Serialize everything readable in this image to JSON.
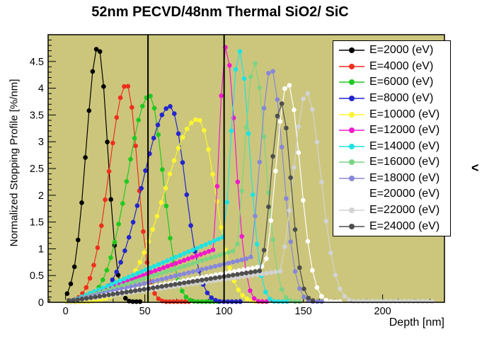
{
  "title": "52nm PECVD/48nm Thermal SiO2/ SiC",
  "chevron": "<",
  "chart_data": {
    "type": "line",
    "title": "52nm PECVD/48nm Thermal SiO2/ SiC",
    "xlabel": "Depth [nm]",
    "ylabel": "Normalized Stopping Profile [%/nm]",
    "xlim": [
      -11,
      239
    ],
    "ylim": [
      0,
      5
    ],
    "x_ticks": [
      0,
      50,
      100,
      150,
      200
    ],
    "x_minor_step": 10,
    "y_ticks": [
      0,
      0.5,
      1,
      1.5,
      2,
      2.5,
      3,
      3.5,
      4,
      4.5
    ],
    "y_minor_step": 0.1,
    "grid": false,
    "plot_bg": "#cbc67c",
    "frame_color": "#000000",
    "boundary_lines_x": [
      52,
      100
    ],
    "legend_position": "top-right",
    "marker_style": "filled-circle",
    "series": [
      {
        "name": "E=2000 (eV)",
        "energy_eV": 2000,
        "color": "#000000",
        "peak": {
          "x": 20.5,
          "y": 4.78
        },
        "sigma_left": 7.5,
        "sigma_right": 6.0,
        "range": [
          1,
          47
        ],
        "step": 2.3,
        "floor": 0.012
      },
      {
        "name": "E=4000 (eV)",
        "energy_eV": 4000,
        "color": "#f02e1d",
        "peak": {
          "x": 38.5,
          "y": 4.07
        },
        "sigma_left": 11,
        "sigma_right": 7,
        "range": [
          1,
          78
        ],
        "step": 2.4,
        "floor": 0.012
      },
      {
        "name": "E=6000 (eV)",
        "energy_eV": 6000,
        "color": "#1fc91f",
        "peak": {
          "x": 53,
          "y": 3.86
        },
        "sigma_left": 14,
        "sigma_right": 8.5,
        "range": [
          1,
          98
        ],
        "step": 2.5,
        "floor": 0.012
      },
      {
        "name": "E=8000 (eV)",
        "energy_eV": 8000,
        "color": "#2425cd",
        "peak": {
          "x": 66,
          "y": 3.66
        },
        "sigma_left": 17.5,
        "sigma_right": 9.5,
        "range": [
          1,
          112
        ],
        "step": 2.6,
        "floor": 0.012
      },
      {
        "name": "E=10000 (eV)",
        "energy_eV": 10000,
        "color": "#fbf531",
        "peak": {
          "x": 83.5,
          "y": 3.42
        },
        "sigma_left": 21,
        "sigma_right": 11,
        "range": [
          1,
          126
        ],
        "step": 2.7,
        "floor": 0.012
      },
      {
        "name": "E=12000 (eV)",
        "energy_eV": 12000,
        "color": "#f119cb",
        "peak": {
          "x": 101,
          "y": 4.77
        },
        "sigma_left": 4.3,
        "sigma_right": 6.2,
        "range": [
          2,
          128
        ],
        "step": 2.6,
        "tail": [
          [
            6,
            0.05
          ],
          [
            95,
            1.0
          ]
        ],
        "floor": 0.015
      },
      {
        "name": "E=14000 (eV)",
        "energy_eV": 14000,
        "color": "#1fe3e3",
        "peak": {
          "x": 109.5,
          "y": 4.7
        },
        "sigma_left": 5.6,
        "sigma_right": 6.6,
        "range": [
          2,
          140
        ],
        "step": 2.7,
        "tail": [
          [
            6,
            0.05
          ],
          [
            102,
            1.25
          ]
        ],
        "floor": 0.015
      },
      {
        "name": "E=16000 (eV)",
        "energy_eV": 16000,
        "color": "#7cd483",
        "peak": {
          "x": 119,
          "y": 4.48
        },
        "sigma_left": 6.3,
        "sigma_right": 7.2,
        "range": [
          2,
          150
        ],
        "step": 2.8,
        "tail": [
          [
            6,
            0.04
          ],
          [
            110,
            1.0
          ]
        ],
        "floor": 0.015
      },
      {
        "name": "E=18000 (eV)",
        "energy_eV": 18000,
        "color": "#8787da",
        "peak": {
          "x": 129.5,
          "y": 4.38
        },
        "sigma_left": 7.0,
        "sigma_right": 7.6,
        "range": [
          2,
          162
        ],
        "step": 2.8,
        "tail": [
          [
            6,
            0.04
          ],
          [
            119,
            0.85
          ]
        ],
        "floor": 0.015
      },
      {
        "name": "E=20000 (eV)",
        "energy_eV": 20000,
        "color": "#ffffff",
        "peak": {
          "x": 140,
          "y": 4.1
        },
        "sigma_left": 7.4,
        "sigma_right": 8.0,
        "range": [
          2,
          174
        ],
        "step": 2.9,
        "tail": [
          [
            6,
            0.03
          ],
          [
            129,
            0.7
          ]
        ],
        "floor": 0.015
      },
      {
        "name": "E=22000 (eV)",
        "energy_eV": 22000,
        "color": "#d3d3d3",
        "peak": {
          "x": 152,
          "y": 3.92
        },
        "sigma_left": 8.4,
        "sigma_right": 9.0,
        "range": [
          2,
          233
        ],
        "step": 2.9,
        "tail": [
          [
            6,
            0.03
          ],
          [
            140,
            0.6
          ]
        ],
        "floor": 0.02
      },
      {
        "name": "E=24000 (eV)",
        "energy_eV": 24000,
        "color": "#4e4e4e",
        "peak": {
          "x": 136,
          "y": 3.72
        },
        "sigma_left": 6.6,
        "sigma_right": 6.2,
        "range": [
          2,
          158
        ],
        "step": 2.8,
        "tail": [
          [
            6,
            0.04
          ],
          [
            125,
            0.6
          ]
        ],
        "floor": 0.035
      }
    ]
  }
}
